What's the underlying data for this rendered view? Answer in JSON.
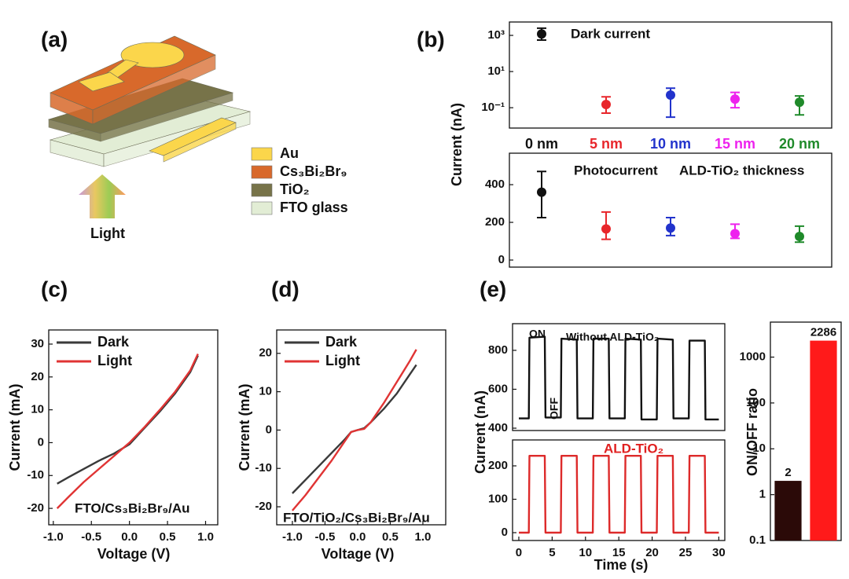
{
  "diagram": {
    "label": "(a)",
    "arrow_label": "Light",
    "legend": [
      {
        "name": "Au",
        "color": "#fbd64b"
      },
      {
        "name": "Cs₃Bi₂Br₉",
        "color": "#d8692b"
      },
      {
        "name": "TiO₂",
        "color": "#777349"
      },
      {
        "name": "FTO glass",
        "color": "#e2edd5"
      }
    ]
  },
  "chart_data": [
    {
      "type": "errorbar",
      "label": "(b)",
      "ylabel": "Current (nA)",
      "log_y": true,
      "categories": [
        "0 nm",
        "5 nm",
        "10 nm",
        "15 nm",
        "20 nm"
      ],
      "category_colors": [
        "#111111",
        "#e8262b",
        "#2233cc",
        "#ee22ee",
        "#1f8a2a"
      ],
      "values": [
        1200,
        0.15,
        0.5,
        0.3,
        0.2
      ],
      "lower": [
        550,
        0.05,
        0.03,
        0.1,
        0.04
      ],
      "upper": [
        2500,
        0.4,
        1.2,
        0.7,
        0.45
      ],
      "ylim": [
        0.0075,
        5500
      ],
      "yticks": [
        {
          "value": 0.1,
          "label": "10⁻¹"
        },
        {
          "value": 10,
          "label": "10¹"
        },
        {
          "value": 1000,
          "label": "10³"
        }
      ],
      "annotations": [
        "Dark current"
      ]
    },
    {
      "type": "errorbar",
      "values": [
        360,
        165,
        170,
        140,
        125
      ],
      "lower": [
        225,
        110,
        130,
        115,
        95
      ],
      "upper": [
        470,
        255,
        225,
        190,
        180
      ],
      "ylim": [
        -37.5,
        567
      ],
      "yticks": [
        0,
        200,
        400
      ],
      "annotations": [
        "Photocurrent",
        "ALD-TiO₂ thickness"
      ]
    },
    {
      "type": "line",
      "label": "(c)",
      "xlabel": "Voltage (V)",
      "ylabel": "Current (mA)",
      "legend": "upper left",
      "x": [
        -0.95,
        -0.8,
        -0.6,
        -0.4,
        -0.2,
        0,
        0.2,
        0.4,
        0.6,
        0.8,
        0.9
      ],
      "series": [
        {
          "name": "Dark",
          "color": "#3a3a3a",
          "values": [
            -12.5,
            -10.5,
            -8,
            -5.5,
            -3.3,
            -0.5,
            4.5,
            9.5,
            15,
            21.5,
            26.5
          ]
        },
        {
          "name": "Light",
          "color": "#e03434",
          "values": [
            -20,
            -16.5,
            -12,
            -8,
            -4,
            0,
            4.8,
            10,
            15.5,
            22,
            27
          ]
        }
      ],
      "xlim": [
        -1.06,
        1.16
      ],
      "xticks": [
        {
          "value": -1,
          "label": "-1.0"
        },
        {
          "value": -0.5,
          "label": "-0.5"
        },
        {
          "value": 0,
          "label": "0.0"
        },
        {
          "value": 0.5,
          "label": "0.5"
        },
        {
          "value": 1,
          "label": "1.0"
        }
      ],
      "ylim": [
        -25,
        34.3
      ],
      "yticks": [
        -20,
        -10,
        0,
        10,
        20,
        30
      ],
      "annotations": [
        "FTO/Cs₃Bi₂Br₉/Au"
      ]
    },
    {
      "type": "line",
      "label": "(d)",
      "xlabel": "Voltage (V)",
      "ylabel": "Current (mA)",
      "legend": "upper left",
      "x": [
        -1.0,
        -0.8,
        -0.6,
        -0.4,
        -0.2,
        -0.1,
        0,
        0.1,
        0.2,
        0.4,
        0.6,
        0.8,
        0.9
      ],
      "series": [
        {
          "name": "Dark",
          "color": "#3a3a3a",
          "values": [
            -16.5,
            -13,
            -9.5,
            -6,
            -2.5,
            -0.5,
            0,
            0.5,
            2,
            5.5,
            9.5,
            14.5,
            17
          ]
        },
        {
          "name": "Light",
          "color": "#e03434",
          "values": [
            -21,
            -17,
            -12.5,
            -8,
            -3,
            -0.5,
            0,
            0.3,
            2,
            7,
            12.5,
            18,
            21
          ]
        }
      ],
      "xlim": [
        -1.24,
        1.35
      ],
      "xticks": [
        {
          "value": -1,
          "label": "-1.0"
        },
        {
          "value": -0.5,
          "label": "-0.5"
        },
        {
          "value": 0,
          "label": "0.0"
        },
        {
          "value": 0.5,
          "label": "0.5"
        },
        {
          "value": 1,
          "label": "1.0"
        }
      ],
      "ylim": [
        -24.7,
        26.1
      ],
      "yticks": [
        -20,
        -10,
        0,
        10,
        20
      ],
      "annotations": [
        "FTO/TiO₂/Cs₃Bi₂Br₉/Au"
      ]
    },
    {
      "type": "line",
      "label": "(e)",
      "ylabel": "Current (nA)",
      "x": [
        0,
        1.5,
        1.6,
        3.9,
        4.0,
        6.3,
        6.4,
        8.7,
        8.8,
        11.1,
        11.2,
        13.5,
        13.6,
        15.9,
        16.0,
        18.3,
        18.4,
        20.7,
        20.8,
        23.1,
        23.2,
        25.5,
        25.6,
        27.9,
        28.0,
        30
      ],
      "series": [
        {
          "color": "#111111",
          "values": [
            450,
            450,
            865,
            870,
            455,
            455,
            860,
            855,
            450,
            450,
            860,
            860,
            450,
            450,
            860,
            855,
            445,
            445,
            860,
            855,
            450,
            450,
            850,
            850,
            445,
            445
          ]
        }
      ],
      "xlim": [
        -0.94,
        30.9
      ],
      "ylim": [
        388,
        937
      ],
      "yticks": [
        400,
        600,
        800
      ],
      "annotations": [
        "ON",
        "OFF",
        "Without ALD-TiO₂"
      ]
    },
    {
      "type": "line",
      "xlabel": "Time (s)",
      "x": [
        0,
        1.5,
        1.6,
        3.9,
        4.0,
        6.3,
        6.4,
        8.7,
        8.8,
        11.1,
        11.2,
        13.5,
        13.6,
        15.9,
        16.0,
        18.3,
        18.4,
        20.7,
        20.8,
        23.1,
        23.2,
        25.5,
        25.6,
        27.9,
        28.0,
        30
      ],
      "series": [
        {
          "color": "#dd2a2a",
          "values": [
            0,
            0,
            230,
            230,
            0,
            0,
            230,
            230,
            0,
            0,
            230,
            230,
            0,
            0,
            230,
            230,
            0,
            0,
            230,
            230,
            0,
            0,
            230,
            230,
            0,
            0
          ]
        }
      ],
      "xlim": [
        -0.94,
        30.9
      ],
      "xticks": [
        0,
        5,
        10,
        15,
        20,
        25,
        30
      ],
      "ylim": [
        -23.5,
        277.6
      ],
      "yticks": [
        0,
        100,
        200
      ],
      "annotations": [
        "ALD-TiO₂"
      ],
      "annotation_color": "#e02020"
    },
    {
      "type": "bar",
      "ylabel": "ON/OFF ratio",
      "log_y": true,
      "categories": [
        null,
        null
      ],
      "values": [
        2,
        2286
      ],
      "colors": [
        "#2b0a08",
        "#ff1a1a"
      ],
      "ylim": [
        0.1,
        5800
      ],
      "yticks": [
        0.1,
        1,
        10,
        100,
        1000
      ]
    }
  ]
}
